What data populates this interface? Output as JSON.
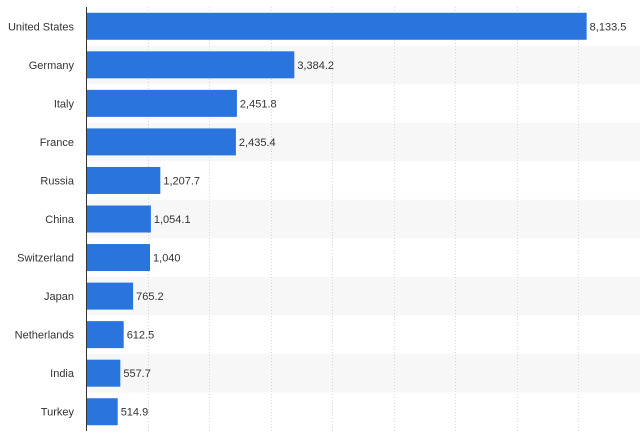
{
  "chart_data": {
    "type": "bar",
    "orientation": "horizontal",
    "title": "",
    "xlabel": "",
    "ylabel": "",
    "categories": [
      "United States",
      "Germany",
      "Italy",
      "France",
      "Russia",
      "China",
      "Switzerland",
      "Japan",
      "Netherlands",
      "India",
      "Turkey"
    ],
    "values": [
      8133.5,
      3384.2,
      2451.8,
      2435.4,
      1207.7,
      1054.1,
      1040,
      765.2,
      612.5,
      557.7,
      514.9
    ],
    "value_labels": [
      "8,133.5",
      "3,384.2",
      "2,451.8",
      "2,435.4",
      "1,207.7",
      "1,054.1",
      "1,040",
      "765.2",
      "612.5",
      "557.7",
      "514.9"
    ],
    "xlim": [
      0,
      9000
    ],
    "grid": "vertical dashed",
    "legend": "none",
    "bar_color": "#2a74de",
    "alt_row_color": "#f7f7f7"
  }
}
